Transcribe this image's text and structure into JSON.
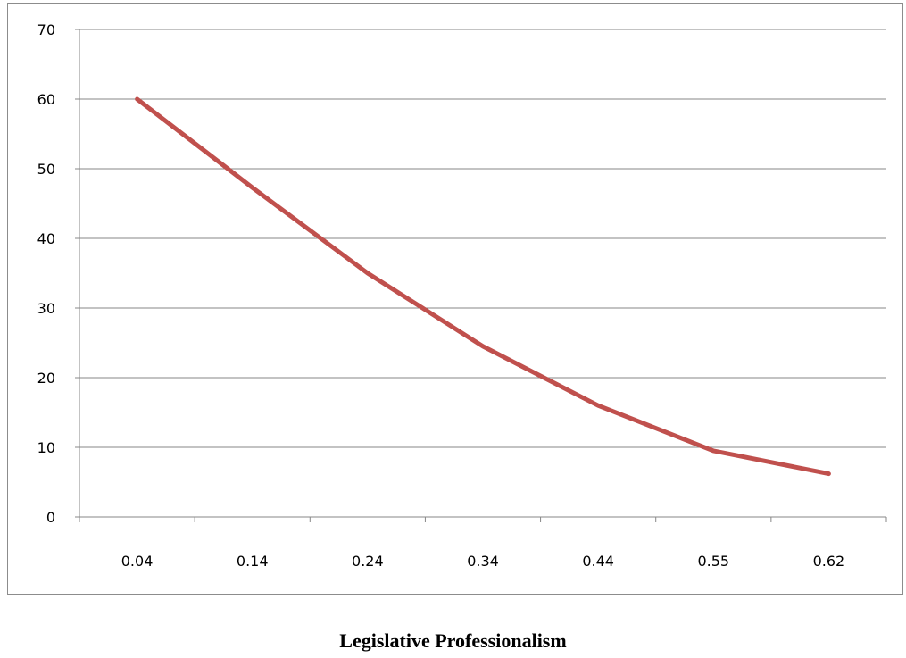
{
  "chart_data": {
    "type": "line",
    "title": "",
    "xlabel": "Legislative Professionalism",
    "ylabel": "",
    "categories": [
      "0.04",
      "0.14",
      "0.24",
      "0.34",
      "0.44",
      "0.55",
      "0.62"
    ],
    "series": [
      {
        "values": [
          60,
          47.3,
          35,
          24.5,
          16,
          9.5,
          6.2
        ],
        "color": "#c0504d"
      }
    ],
    "yticks": [
      "0",
      "10",
      "20",
      "30",
      "40",
      "50",
      "60",
      "70"
    ],
    "ylim": [
      0,
      70
    ],
    "grid": "horizontal",
    "legend": "none"
  }
}
